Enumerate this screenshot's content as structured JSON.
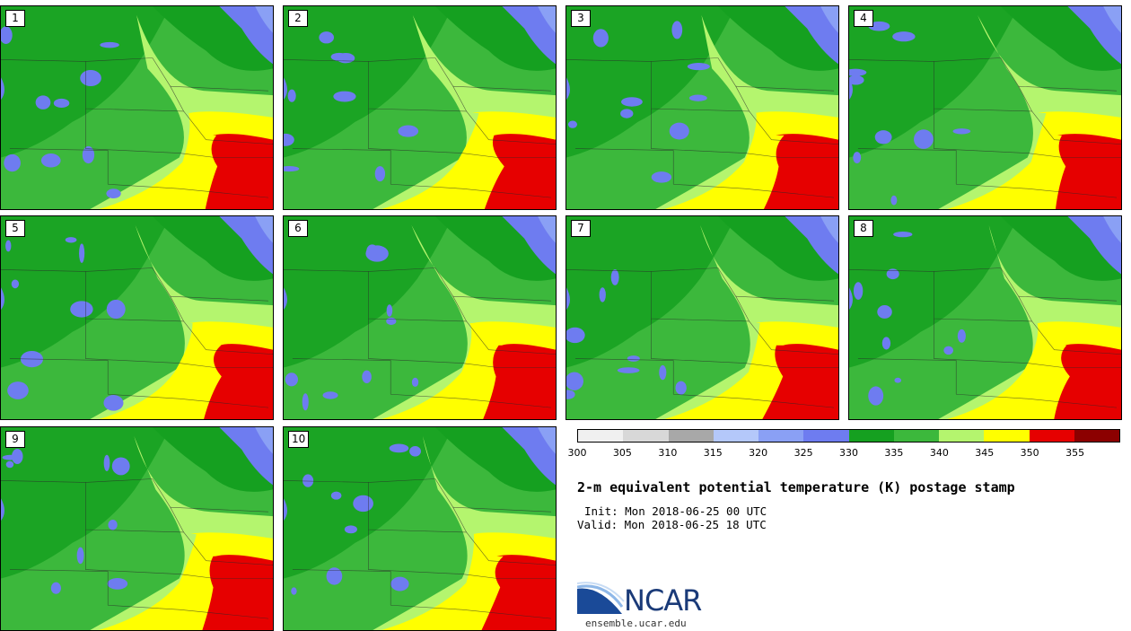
{
  "title": "2-m equivalent potential temperature (K) postage stamp",
  "init_line": "Init: Mon 2018-06-25 00 UTC",
  "valid_line": "Valid: Mon 2018-06-25 18 UTC",
  "branding": {
    "logo_text": "NCAR",
    "url": "ensemble.ucar.edu"
  },
  "panels": [
    {
      "label": "1"
    },
    {
      "label": "2"
    },
    {
      "label": "3"
    },
    {
      "label": "4"
    },
    {
      "label": "5"
    },
    {
      "label": "6"
    },
    {
      "label": "7"
    },
    {
      "label": "8"
    },
    {
      "label": "9"
    },
    {
      "label": "10"
    }
  ],
  "colorbar": {
    "units": "K",
    "ticks": [
      "300",
      "305",
      "310",
      "315",
      "320",
      "325",
      "330",
      "335",
      "340",
      "345",
      "350",
      "355"
    ],
    "colors": [
      "#f0f0f0",
      "#d8d8d8",
      "#a8a8a8",
      "#b4c8fa",
      "#8aa0f5",
      "#6e7cf0",
      "#15a020",
      "#3cb83c",
      "#b4f56e",
      "#ffff00",
      "#e60000",
      "#8c0000"
    ]
  }
}
